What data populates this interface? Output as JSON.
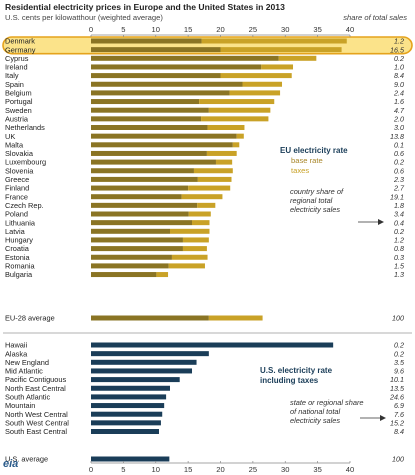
{
  "title": "Residential electricity prices in Europe and the United States in 2013",
  "subtitle": "U.S. cents per kilowatthour (weighted  average)",
  "share_header": "share of total sales",
  "logo_text": "eia",
  "colors": {
    "base_rate": "#8a7424",
    "taxes": "#c9a227",
    "us_rate": "#1a3d58",
    "highlight_fill": "#fbe38a",
    "highlight_stroke": "#e5a31c",
    "eu_legend_title": "#1a3d58",
    "eu_base_text": "#a8862a",
    "eu_tax_text": "#c9a227",
    "us_legend_title": "#1a3d58"
  },
  "eu_legend": {
    "title": "EU electricity rate",
    "base": "base rate",
    "taxes": "taxes",
    "note": [
      "country share of",
      "regional total",
      "electricity sales"
    ]
  },
  "us_legend": {
    "title": [
      "U.S. electricity rate",
      "including taxes"
    ],
    "note": [
      "state or regional share",
      "of national total",
      "electricity sales"
    ]
  },
  "highlight": [
    "Denmark",
    "Germany"
  ],
  "chart_data": [
    {
      "type": "bar",
      "stacked": true,
      "orientation": "horizontal",
      "xlim": [
        0,
        40
      ],
      "ticks": [
        0,
        5,
        10,
        15,
        20,
        25,
        30,
        35,
        40
      ],
      "grid": false,
      "categories": [
        "Denmark",
        "Germany",
        "Cyprus",
        "Ireland",
        "Italy",
        "Spain",
        "Belgium",
        "Portugal",
        "Sweden",
        "Austria",
        "Netherlands",
        "UK",
        "Malta",
        "Slovakia",
        "Luxembourg",
        "Slovenia",
        "Greece",
        "Finland",
        "France",
        "Czech Rep.",
        "Poland",
        "Lithuania",
        "Latvia",
        "Hungary",
        "Croatia",
        "Estonia",
        "Romania",
        "Bulgaria",
        "EU-28 average"
      ],
      "series": [
        {
          "name": "base rate",
          "values": [
            17.1,
            20.0,
            29.0,
            26.3,
            20.0,
            23.4,
            21.4,
            16.7,
            18.2,
            17.0,
            18.0,
            22.5,
            21.9,
            17.9,
            19.3,
            15.9,
            16.5,
            15.0,
            14.0,
            16.4,
            15.1,
            15.6,
            12.2,
            14.2,
            14.2,
            12.5,
            12.0,
            10.1,
            18.2
          ]
        },
        {
          "name": "taxes",
          "values": [
            22.4,
            18.7,
            5.8,
            4.9,
            11.0,
            6.1,
            7.8,
            11.6,
            9.5,
            10.4,
            5.7,
            1.1,
            1.0,
            4.6,
            2.5,
            6.0,
            5.2,
            6.5,
            6.3,
            2.8,
            3.4,
            2.7,
            6.1,
            4.0,
            3.7,
            5.5,
            5.6,
            1.8,
            8.3
          ]
        }
      ],
      "share_labels": [
        "1.2",
        "16.5",
        "0.2",
        "1.0",
        "8.4",
        "9.0",
        "2.4",
        "1.6",
        "4.7",
        "2.0",
        "3.0",
        "13.8",
        "0.1",
        "0.6",
        "0.2",
        "0.6",
        "2.3",
        "2.7",
        "19.1",
        "1.8",
        "3.4",
        "0.4",
        "0.2",
        "1.2",
        "0.8",
        "0.3",
        "1.5",
        "1.3",
        "100"
      ]
    },
    {
      "type": "bar",
      "orientation": "horizontal",
      "xlim": [
        0,
        40
      ],
      "ticks": [
        0,
        5,
        10,
        15,
        20,
        25,
        30,
        35,
        40
      ],
      "grid": false,
      "categories": [
        "Hawaii",
        "Alaska",
        "New England",
        "Mid Atlantic",
        "Pacific Contiguous",
        "North East Central",
        "South Atlantic",
        "Mountain",
        "North West Central",
        "South West Central",
        "South East Central",
        "U.S. average"
      ],
      "series": [
        {
          "name": "U.S. electricity rate including taxes",
          "values": [
            37.4,
            18.2,
            16.3,
            15.6,
            13.7,
            12.2,
            11.6,
            11.3,
            11.0,
            10.8,
            10.5,
            12.1
          ]
        }
      ],
      "share_labels": [
        "0.2",
        "0.2",
        "3.5",
        "9.6",
        "10.1",
        "13.5",
        "24.6",
        "6.9",
        "7.6",
        "15.2",
        "8.4",
        "100"
      ]
    }
  ]
}
